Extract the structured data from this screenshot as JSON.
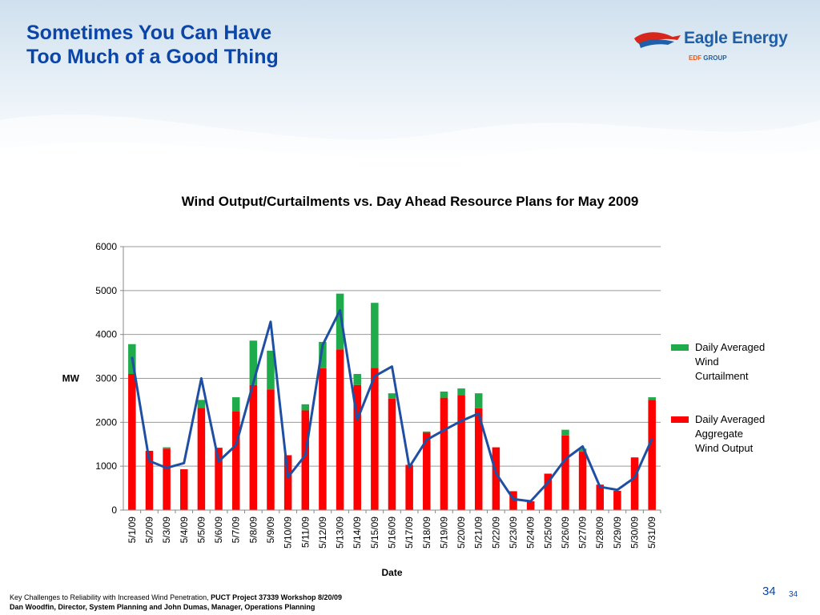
{
  "slide": {
    "title_line1": "Sometimes You Can Have",
    "title_line2": "Too Much of a Good Thing",
    "logo_text": "Eagle Energy",
    "logo_group_prefix": "EDF",
    "logo_group_suffix": " GROUP",
    "footer_line1_plain": "Key Challenges to Reliability with Increased Wind Penetration, ",
    "footer_line1_bold": "PUCT Project 37339 Workshop 8/20/09",
    "footer_line2": "Dan Woodfin, Director, System Planning and John Dumas, Manager, Operations Planning",
    "page_number": "34",
    "page_number_small": "34"
  },
  "colors": {
    "title": "#0b45a8",
    "output": "#ff0000",
    "curtailment": "#1faa4b",
    "plan_line": "#1f4fa3",
    "grid": "#9a9a9a"
  },
  "chart_data": {
    "type": "bar",
    "title": "Wind Output/Curtailments vs. Day Ahead Resource Plans for May 2009",
    "xlabel": "Date",
    "ylabel": "MW",
    "ylim": [
      0,
      6000
    ],
    "yticks": [
      "0",
      "1000",
      "2000",
      "3000",
      "4000",
      "5000",
      "6000"
    ],
    "grid": true,
    "legend_position": "right",
    "categories": [
      "5/1/09",
      "5/2/09",
      "5/3/09",
      "5/4/09",
      "5/5/09",
      "5/6/09",
      "5/7/09",
      "5/8/09",
      "5/9/09",
      "5/10/09",
      "5/11/09",
      "5/12/09",
      "5/13/09",
      "5/14/09",
      "5/15/09",
      "5/16/09",
      "5/17/09",
      "5/18/09",
      "5/19/09",
      "5/20/09",
      "5/21/09",
      "5/22/09",
      "5/23/09",
      "5/24/09",
      "5/25/09",
      "5/26/09",
      "5/27/09",
      "5/28/09",
      "5/29/09",
      "5/30/09",
      "5/31/09"
    ],
    "series": [
      {
        "name": "Daily Averaged Aggregate Wind Output",
        "kind": "bar",
        "values": [
          3100,
          1350,
          1400,
          930,
          2330,
          1420,
          2250,
          2850,
          2750,
          1250,
          2270,
          3230,
          3660,
          2850,
          3240,
          2540,
          1030,
          1760,
          2560,
          2620,
          2320,
          1430,
          430,
          200,
          830,
          1700,
          1330,
          580,
          440,
          1200,
          2510
        ]
      },
      {
        "name": "Daily Averaged Wind Curtailment",
        "kind": "bar",
        "values": [
          680,
          0,
          30,
          0,
          180,
          0,
          320,
          1010,
          880,
          0,
          140,
          600,
          1270,
          250,
          1480,
          120,
          0,
          30,
          140,
          150,
          340,
          0,
          0,
          0,
          0,
          130,
          70,
          0,
          0,
          0,
          60
        ]
      },
      {
        "name": "Day Ahead Resource Plan",
        "kind": "line",
        "values": [
          3490,
          1120,
          960,
          1070,
          3000,
          1110,
          1480,
          2900,
          4290,
          750,
          1250,
          3760,
          4550,
          2060,
          3050,
          3270,
          980,
          1600,
          1820,
          2030,
          2200,
          840,
          250,
          200,
          630,
          1160,
          1450,
          530,
          460,
          740,
          1620
        ]
      }
    ]
  }
}
